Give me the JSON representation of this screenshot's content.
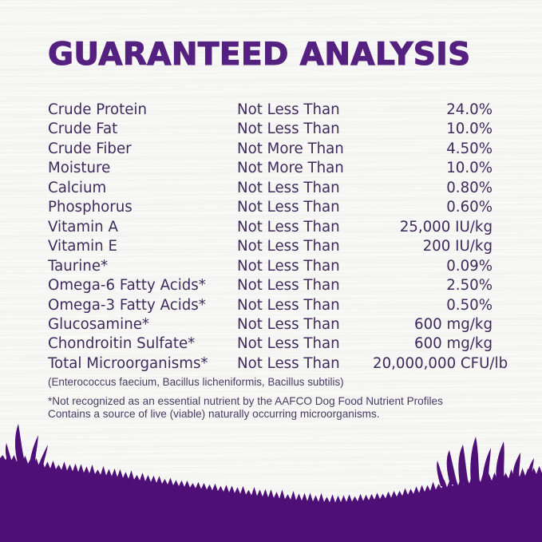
{
  "title": "GUARANTEED ANALYSIS",
  "table": {
    "rows": [
      {
        "nutrient": "Crude Protein",
        "qualifier": "Not Less Than",
        "value": "24.0%"
      },
      {
        "nutrient": "Crude Fat",
        "qualifier": "Not Less Than",
        "value": "10.0%"
      },
      {
        "nutrient": "Crude Fiber",
        "qualifier": "Not More Than",
        "value": "4.50%"
      },
      {
        "nutrient": "Moisture",
        "qualifier": "Not More Than",
        "value": "10.0%"
      },
      {
        "nutrient": "Calcium",
        "qualifier": "Not Less Than",
        "value": "0.80%"
      },
      {
        "nutrient": "Phosphorus",
        "qualifier": "Not Less Than",
        "value": "0.60%"
      },
      {
        "nutrient": "Vitamin A",
        "qualifier": "Not Less Than",
        "value": "25,000 IU/kg"
      },
      {
        "nutrient": "Vitamin E",
        "qualifier": "Not Less Than",
        "value": "200 IU/kg"
      },
      {
        "nutrient": "Taurine*",
        "qualifier": "Not Less Than",
        "value": "0.09%"
      },
      {
        "nutrient": "Omega-6 Fatty Acids*",
        "qualifier": "Not Less Than",
        "value": "2.50%"
      },
      {
        "nutrient": "Omega-3 Fatty Acids*",
        "qualifier": "Not Less Than",
        "value": "0.50%"
      },
      {
        "nutrient": "Glucosamine*",
        "qualifier": "Not Less Than",
        "value": "600 mg/kg"
      },
      {
        "nutrient": "Chondroitin Sulfate*",
        "qualifier": "Not Less Than",
        "value": "600 mg/kg"
      },
      {
        "nutrient": "Total Microorganisms*",
        "qualifier": "Not Less Than",
        "value": "20,000,000 CFU/lb"
      }
    ]
  },
  "footnotes": {
    "microorganism_species": "(Enterococcus faecium, Bacillus licheniformis, Bacillus subtilis)",
    "note_line1": "*Not recognized as an essential nutrient by the AAFCO Dog Food Nutrient Profiles",
    "note_line2": "Contains a source of live (viable) naturally occurring microorganisms."
  },
  "colors": {
    "title": "#552180",
    "body_text": "#3F2A5C",
    "footnote_text": "#4A3A63",
    "hill": "#4E0F77",
    "background": "#FBFBF9"
  },
  "decor": {
    "hill": "grass-hill-silhouette"
  }
}
